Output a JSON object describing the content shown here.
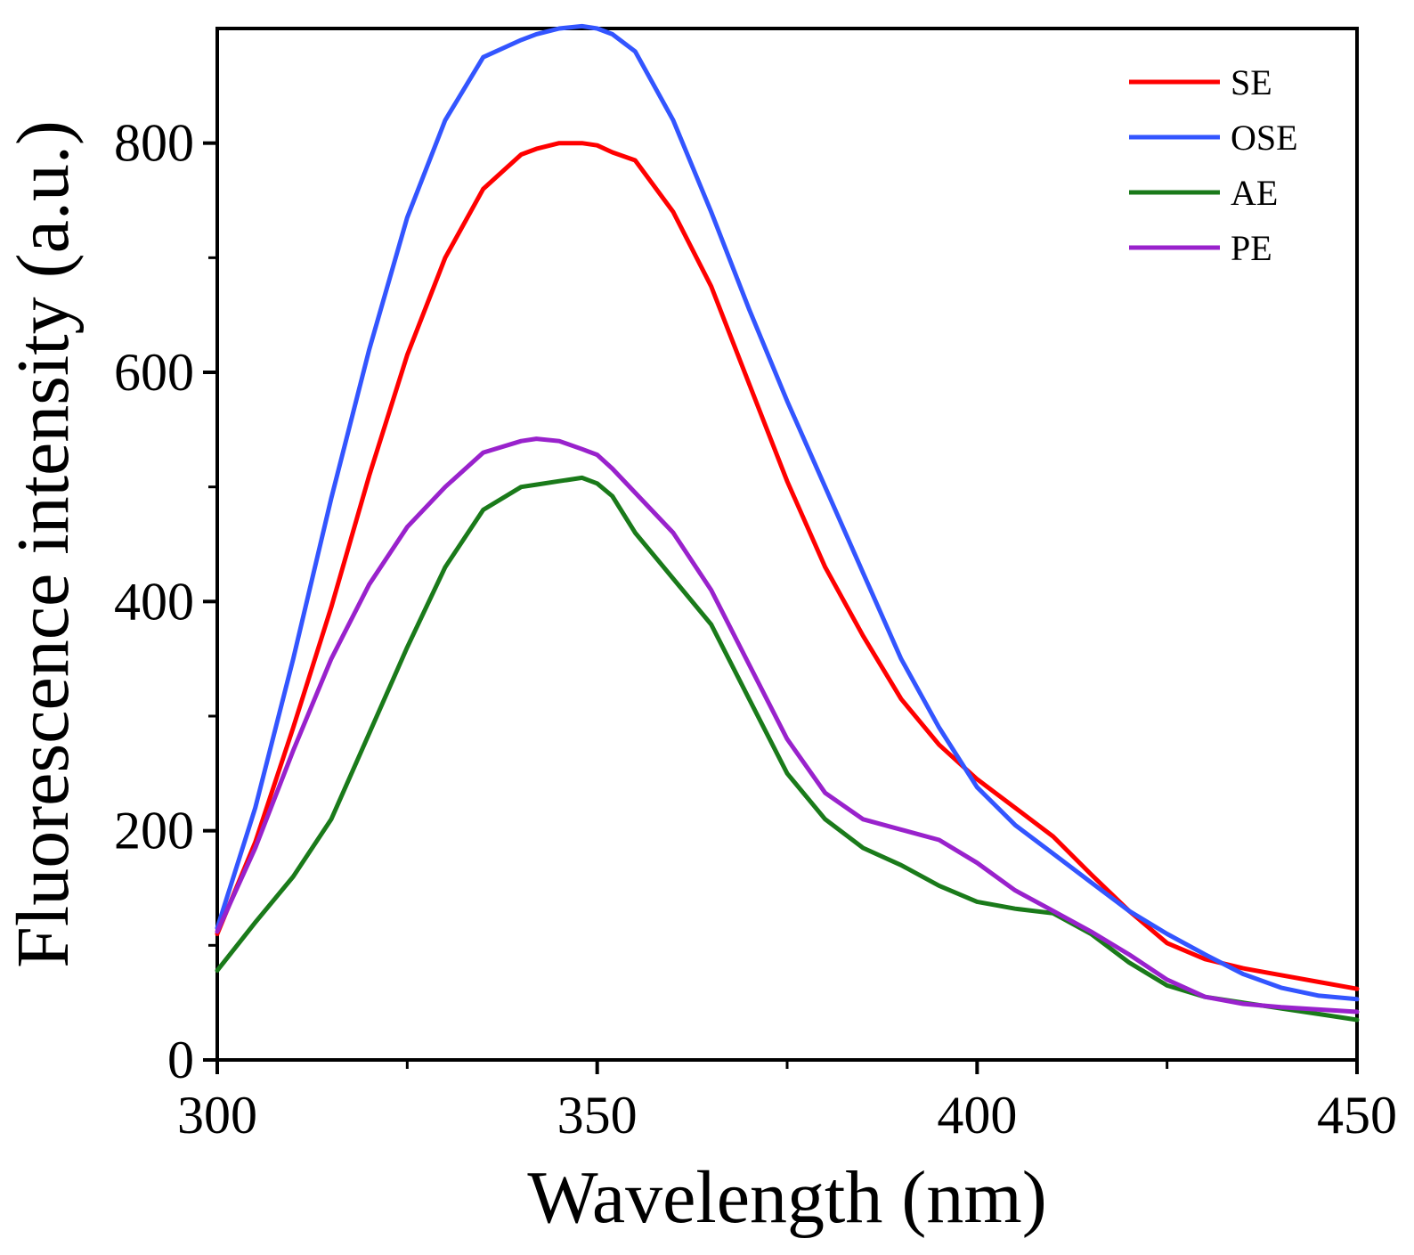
{
  "chart_data": {
    "type": "line",
    "title": "",
    "xlabel": "Wavelength (nm)",
    "ylabel": "Fluorescence intensity (a.u.)",
    "xlim": [
      300,
      450
    ],
    "ylim": [
      0,
      900
    ],
    "x_ticks": [
      300,
      350,
      400,
      450
    ],
    "x_tick_labels": [
      "300",
      "350",
      "400",
      "450"
    ],
    "x_minor_ticks": [
      325,
      375,
      425
    ],
    "y_ticks": [
      0,
      200,
      400,
      600,
      800
    ],
    "y_tick_labels": [
      "0",
      "200",
      "400",
      "600",
      "800"
    ],
    "y_minor_ticks": [
      100,
      300,
      500,
      700
    ],
    "grid": false,
    "legend_position": "top-right",
    "x": [
      300,
      305,
      310,
      315,
      320,
      325,
      330,
      335,
      340,
      342,
      345,
      348,
      350,
      352,
      355,
      360,
      365,
      370,
      375,
      380,
      385,
      390,
      395,
      400,
      405,
      410,
      415,
      420,
      425,
      430,
      435,
      440,
      445,
      450
    ],
    "series": [
      {
        "name": "SE",
        "color": "#ff0000",
        "values": [
          110,
          190,
          290,
          395,
          510,
          615,
          700,
          760,
          790,
          795,
          800,
          800,
          798,
          792,
          785,
          740,
          675,
          590,
          505,
          430,
          370,
          315,
          275,
          245,
          220,
          195,
          162,
          130,
          102,
          88,
          80,
          74,
          68,
          62
        ]
      },
      {
        "name": "OSE",
        "color": "#3355ff",
        "values": [
          115,
          220,
          350,
          490,
          620,
          735,
          820,
          875,
          890,
          895,
          900,
          902,
          900,
          895,
          880,
          820,
          740,
          655,
          575,
          500,
          425,
          350,
          290,
          238,
          205,
          180,
          155,
          130,
          110,
          92,
          75,
          63,
          56,
          53
        ]
      },
      {
        "name": "AE",
        "color": "#1a7a1a",
        "values": [
          78,
          120,
          160,
          210,
          285,
          360,
          430,
          480,
          500,
          502,
          505,
          508,
          503,
          492,
          460,
          420,
          380,
          315,
          250,
          210,
          185,
          170,
          152,
          138,
          132,
          128,
          110,
          85,
          65,
          55,
          50,
          45,
          40,
          35
        ]
      },
      {
        "name": "PE",
        "color": "#9922cc",
        "values": [
          112,
          185,
          270,
          350,
          415,
          465,
          500,
          530,
          540,
          542,
          540,
          533,
          528,
          516,
          495,
          460,
          410,
          345,
          280,
          233,
          210,
          201,
          192,
          172,
          148,
          130,
          112,
          92,
          70,
          55,
          49,
          46,
          44,
          42
        ]
      }
    ]
  }
}
